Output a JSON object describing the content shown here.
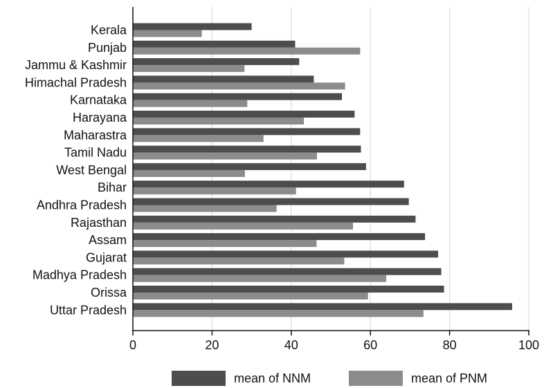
{
  "chart_data": {
    "type": "bar",
    "orientation": "horizontal",
    "title": "",
    "xlabel": "",
    "ylabel": "",
    "xlim": [
      0,
      100
    ],
    "xticks": [
      0,
      20,
      40,
      60,
      80,
      100
    ],
    "grid": "vertical",
    "legend_position": "bottom",
    "categories": [
      "Kerala",
      "Punjab",
      "Jammu & Kashmir",
      "Himachal Pradesh",
      "Karnataka",
      "Harayana",
      "Maharastra",
      "Tamil Nadu",
      "West Bengal",
      "Bihar",
      "Andhra Pradesh",
      "Rajasthan",
      "Assam",
      "Gujarat",
      "Madhya Pradesh",
      "Orissa",
      "Uttar Pradesh"
    ],
    "series": [
      {
        "name": "mean of NNM",
        "color": "#4d4d4d",
        "values": [
          30.0,
          41.0,
          42.0,
          45.7,
          52.8,
          56.0,
          57.4,
          57.6,
          58.9,
          68.5,
          69.7,
          71.4,
          73.8,
          77.1,
          77.9,
          78.6,
          95.8
        ]
      },
      {
        "name": "mean of PNM",
        "color": "#8c8c8c",
        "values": [
          17.4,
          57.4,
          28.2,
          53.6,
          28.9,
          43.2,
          33.0,
          46.5,
          28.3,
          41.2,
          36.3,
          55.6,
          46.4,
          53.4,
          64.0,
          59.4,
          73.4
        ]
      }
    ]
  }
}
